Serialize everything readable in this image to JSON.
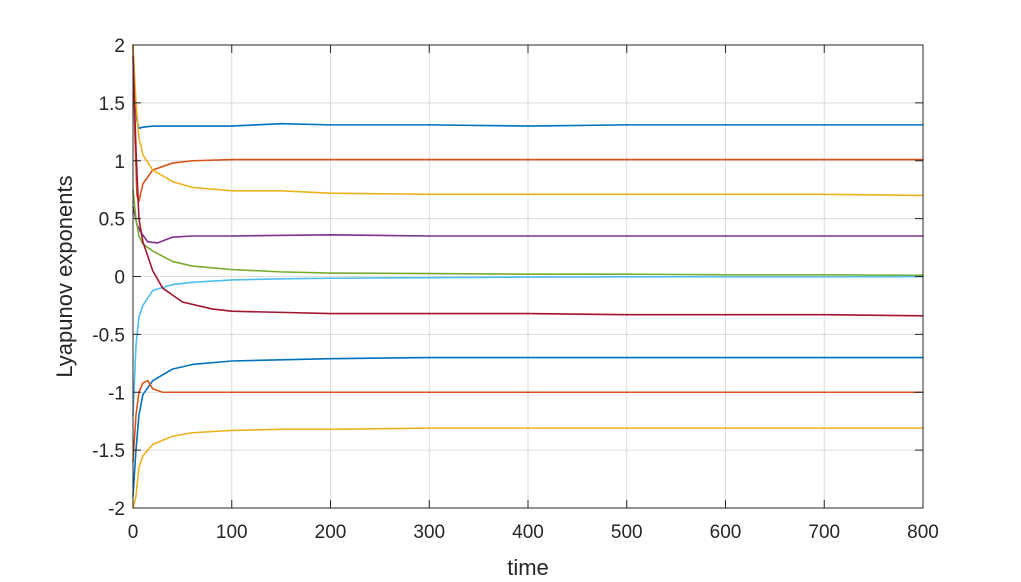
{
  "chart_data": {
    "type": "line",
    "xlabel": "time",
    "ylabel": "Lyapunov exponents",
    "xlim": [
      0,
      800
    ],
    "ylim": [
      -2,
      2
    ],
    "xticks": [
      0,
      100,
      200,
      300,
      400,
      500,
      600,
      700,
      800
    ],
    "yticks": [
      2,
      1.5,
      1,
      0.5,
      0,
      -0.5,
      -1,
      -1.5,
      -2
    ],
    "xtick_labels": [
      "0",
      "100",
      "200",
      "300",
      "400",
      "500",
      "600",
      "700",
      "800"
    ],
    "ytick_labels": [
      "2",
      "1.5",
      "1",
      "0.5",
      "0",
      "-0.5",
      "-1",
      "-1.5",
      "-2"
    ],
    "grid": true,
    "series": [
      {
        "color": "#0072BD",
        "x": [
          0,
          2,
          4,
          6,
          10,
          20,
          50,
          100,
          150,
          200,
          300,
          400,
          500,
          600,
          700,
          800
        ],
        "y": [
          2.0,
          1.6,
          1.35,
          1.28,
          1.29,
          1.3,
          1.3,
          1.3,
          1.32,
          1.31,
          1.31,
          1.3,
          1.31,
          1.31,
          1.31,
          1.31
        ]
      },
      {
        "color": "#D95319",
        "x": [
          0,
          2,
          4,
          6,
          10,
          20,
          40,
          60,
          100,
          200,
          300,
          400,
          500,
          600,
          700,
          800
        ],
        "y": [
          2.0,
          1.2,
          0.7,
          0.65,
          0.8,
          0.92,
          0.98,
          1.0,
          1.01,
          1.01,
          1.01,
          1.01,
          1.01,
          1.01,
          1.01,
          1.01
        ]
      },
      {
        "color": "#EDB120",
        "x": [
          0,
          3,
          6,
          10,
          20,
          40,
          60,
          100,
          150,
          200,
          300,
          400,
          500,
          600,
          700,
          800
        ],
        "y": [
          2.0,
          1.5,
          1.2,
          1.05,
          0.92,
          0.82,
          0.77,
          0.74,
          0.74,
          0.72,
          0.71,
          0.71,
          0.71,
          0.71,
          0.71,
          0.7
        ]
      },
      {
        "color": "#7E2F8E",
        "x": [
          0,
          4,
          8,
          15,
          25,
          40,
          60,
          100,
          200,
          300,
          400,
          500,
          600,
          700,
          800
        ],
        "y": [
          0.6,
          0.45,
          0.38,
          0.3,
          0.29,
          0.34,
          0.35,
          0.35,
          0.36,
          0.35,
          0.35,
          0.35,
          0.35,
          0.35,
          0.35
        ]
      },
      {
        "color": "#77AC30",
        "x": [
          0,
          3,
          6,
          10,
          20,
          40,
          60,
          100,
          150,
          200,
          300,
          400,
          500,
          600,
          700,
          800
        ],
        "y": [
          0.75,
          0.5,
          0.35,
          0.28,
          0.22,
          0.13,
          0.09,
          0.06,
          0.04,
          0.03,
          0.025,
          0.02,
          0.02,
          0.015,
          0.015,
          0.01
        ]
      },
      {
        "color": "#4DBEEE",
        "x": [
          0,
          3,
          6,
          10,
          20,
          40,
          60,
          100,
          150,
          200,
          300,
          400,
          500,
          600,
          700,
          800
        ],
        "y": [
          -1.2,
          -0.6,
          -0.35,
          -0.25,
          -0.12,
          -0.07,
          -0.05,
          -0.03,
          -0.02,
          -0.015,
          -0.01,
          -0.005,
          -0.003,
          -0.002,
          -0.002,
          -0.001
        ]
      },
      {
        "color": "#A2142F",
        "x": [
          0,
          3,
          6,
          10,
          20,
          30,
          50,
          80,
          100,
          150,
          200,
          300,
          400,
          500,
          600,
          700,
          800
        ],
        "y": [
          1.9,
          1.1,
          0.5,
          0.3,
          0.05,
          -0.1,
          -0.22,
          -0.28,
          -0.3,
          -0.31,
          -0.32,
          -0.32,
          -0.32,
          -0.33,
          -0.33,
          -0.33,
          -0.34
        ]
      },
      {
        "color": "#0072BD",
        "x": [
          0,
          3,
          6,
          10,
          20,
          40,
          60,
          100,
          150,
          200,
          300,
          400,
          500,
          600,
          700,
          800
        ],
        "y": [
          -1.9,
          -1.5,
          -1.2,
          -1.02,
          -0.9,
          -0.8,
          -0.76,
          -0.73,
          -0.72,
          -0.71,
          -0.7,
          -0.7,
          -0.7,
          -0.7,
          -0.7,
          -0.7
        ]
      },
      {
        "color": "#D95319",
        "x": [
          0,
          3,
          6,
          10,
          15,
          20,
          30,
          50,
          100,
          200,
          300,
          400,
          500,
          600,
          700,
          800
        ],
        "y": [
          -1.6,
          -1.2,
          -1.0,
          -0.92,
          -0.9,
          -0.97,
          -1.0,
          -1.0,
          -1.0,
          -1.0,
          -1.0,
          -1.0,
          -1.0,
          -1.0,
          -1.0,
          -1.0
        ]
      },
      {
        "color": "#EDB120",
        "x": [
          0,
          3,
          6,
          10,
          20,
          40,
          60,
          100,
          150,
          200,
          300,
          400,
          500,
          600,
          700,
          800
        ],
        "y": [
          -2.0,
          -1.9,
          -1.65,
          -1.55,
          -1.45,
          -1.38,
          -1.35,
          -1.33,
          -1.32,
          -1.32,
          -1.31,
          -1.31,
          -1.31,
          -1.31,
          -1.31,
          -1.31
        ]
      }
    ]
  }
}
